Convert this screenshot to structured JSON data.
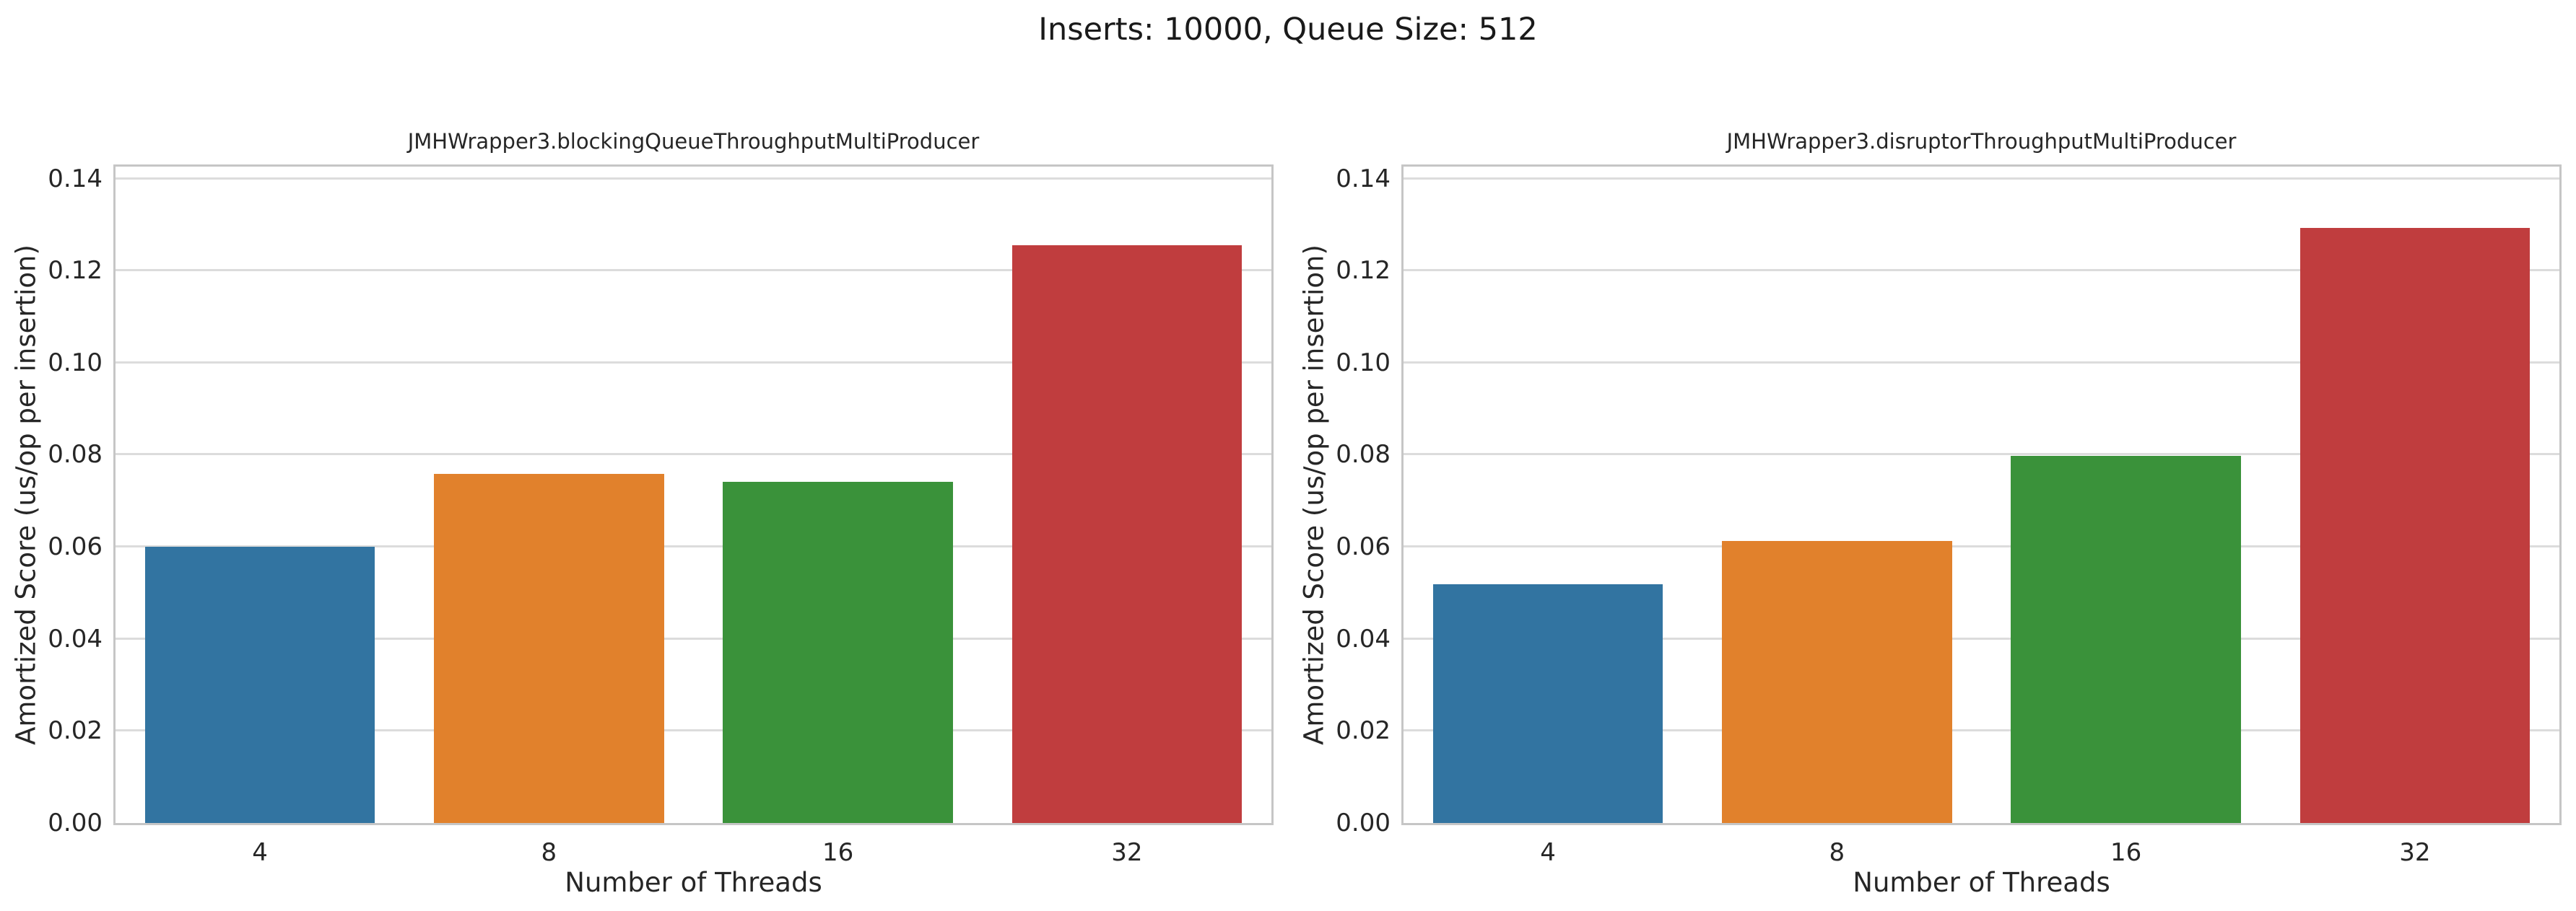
{
  "figure": {
    "title": "Inserts: 10000, Queue Size: 512"
  },
  "style": {
    "background": "#ffffff",
    "grid_color": "#dcdcdc",
    "spine_color": "#c6c6c6",
    "text_color": "#262626",
    "bar_colors": [
      "#3274a1",
      "#e1812c",
      "#3a923a",
      "#c03d3e"
    ]
  },
  "chart_data": [
    {
      "type": "bar",
      "title": "JMHWrapper3.blockingQueueThroughputMultiProducer",
      "categories": [
        "4",
        "8",
        "16",
        "32"
      ],
      "values": [
        0.06,
        0.0758,
        0.0742,
        0.1255
      ],
      "xlabel": "Number of Threads",
      "ylabel": "Amortized Score (us/op per insertion)",
      "ylim": [
        0,
        0.1426
      ],
      "yticks": [
        0,
        0.02,
        0.04,
        0.06,
        0.08,
        0.1,
        0.12,
        0.14
      ],
      "grid": true,
      "legend": false
    },
    {
      "type": "bar",
      "title": "JMHWrapper3.disruptorThroughputMultiProducer",
      "categories": [
        "4",
        "8",
        "16",
        "32"
      ],
      "values": [
        0.0519,
        0.0613,
        0.0797,
        0.1293
      ],
      "xlabel": "Number of Threads",
      "ylabel": "Amortized Score (us/op per insertion)",
      "ylim": [
        0,
        0.1426
      ],
      "yticks": [
        0,
        0.02,
        0.04,
        0.06,
        0.08,
        0.1,
        0.12,
        0.14
      ],
      "grid": true,
      "legend": false
    }
  ]
}
